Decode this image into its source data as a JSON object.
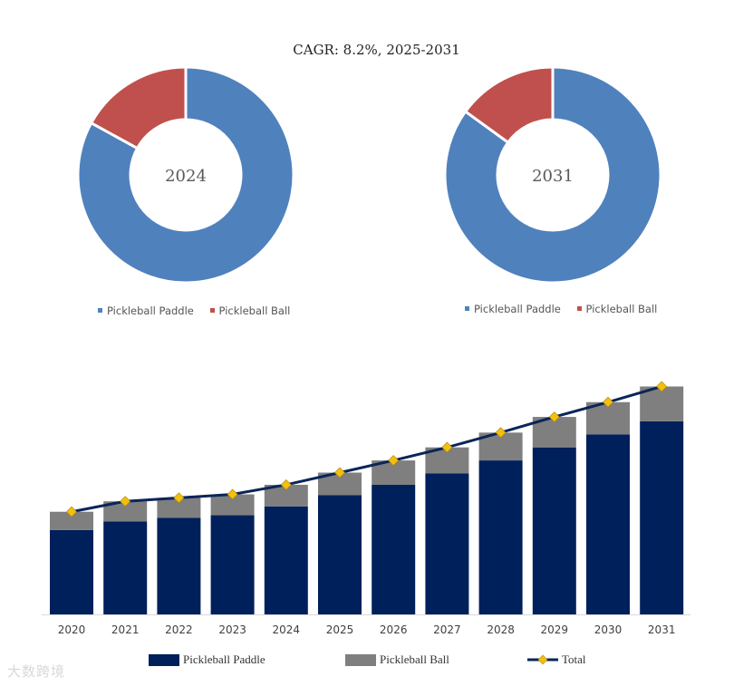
{
  "cagr_text": "CAGR:   8.2%, 2025-2031",
  "colors": {
    "paddle_donut": "#4f81bd",
    "ball_donut": "#c0504d",
    "paddle_bar": "#00205b",
    "ball_bar": "#7f7f7f",
    "total_line": "#0a2559",
    "total_marker": "#f2c10f"
  },
  "watermark": "大数跨境",
  "chart_data": [
    {
      "type": "pie",
      "title": "2024",
      "categories": [
        "Pickleball Paddle",
        "Pickleball Ball"
      ],
      "values": [
        83,
        17
      ],
      "legend": [
        "Pickleball Paddle",
        "Pickleball Ball"
      ]
    },
    {
      "type": "pie",
      "title": "2031",
      "categories": [
        "Pickleball Paddle",
        "Pickleball Ball"
      ],
      "values": [
        85,
        15
      ],
      "legend": [
        "Pickleball Paddle",
        "Pickleball Ball"
      ]
    },
    {
      "type": "bar",
      "stacked": true,
      "categories": [
        "2020",
        "2021",
        "2022",
        "2023",
        "2024",
        "2025",
        "2026",
        "2027",
        "2028",
        "2029",
        "2030",
        "2031"
      ],
      "series": [
        {
          "name": "Pickleball Paddle",
          "values": [
            97,
            107,
            111,
            114,
            124,
            137,
            149,
            162,
            177,
            192,
            207,
            222
          ]
        },
        {
          "name": "Pickleball Ball",
          "values": [
            21,
            23,
            23,
            24,
            25,
            26,
            28,
            30,
            32,
            35,
            37,
            40
          ]
        },
        {
          "name": "Total",
          "type": "line",
          "values": [
            118,
            130,
            134,
            138,
            149,
            163,
            177,
            192,
            209,
            227,
            244,
            262
          ]
        }
      ],
      "ylim": [
        0,
        300
      ],
      "legend": [
        "Pickleball Paddle",
        "Pickleball Ball",
        "Total"
      ]
    }
  ]
}
